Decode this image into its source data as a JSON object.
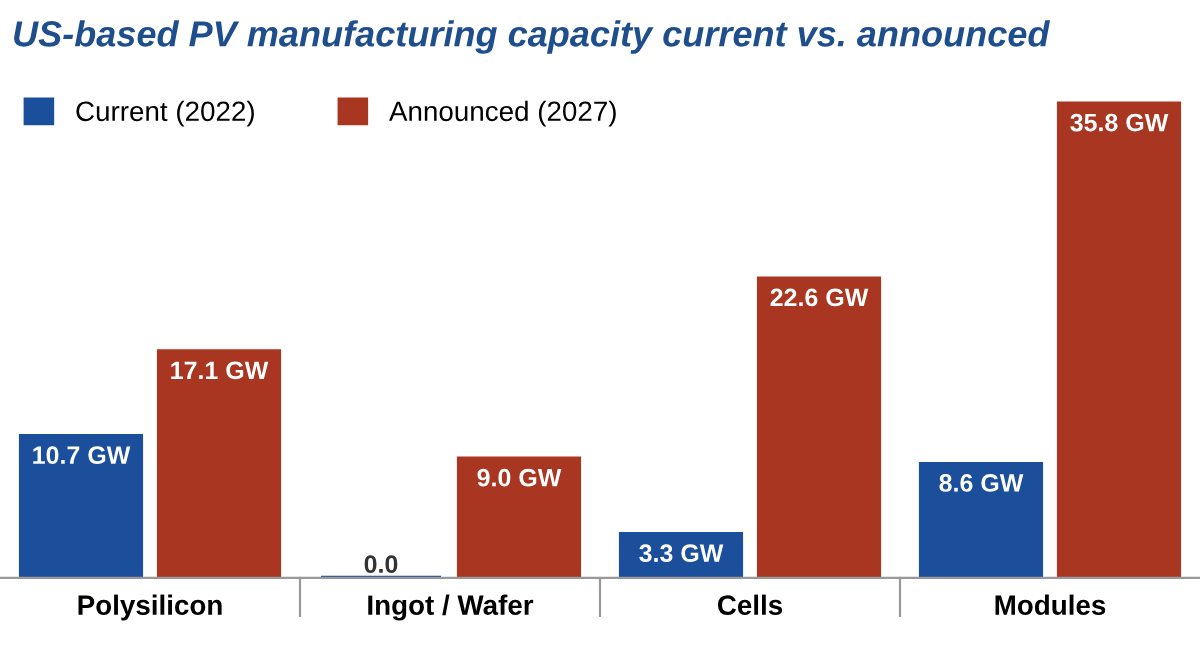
{
  "chart_data": {
    "type": "bar",
    "title": "US-based PV manufacturing capacity current vs. announced",
    "categories": [
      "Polysilicon",
      "Ingot / Wafer",
      "Cells",
      "Modules"
    ],
    "series": [
      {
        "name": "Current (2022)",
        "color": "#1b4f9c",
        "values": [
          10.7,
          0.0,
          3.3,
          8.6
        ],
        "value_labels": [
          "10.7 GW",
          "0.0",
          "3.3 GW",
          "8.6 GW"
        ]
      },
      {
        "name": "Announced (2027)",
        "color": "#a93621",
        "values": [
          17.1,
          9.0,
          22.6,
          35.8
        ],
        "value_labels": [
          "17.1 GW",
          "9.0 GW",
          "22.6 GW",
          "35.8 GW"
        ]
      }
    ],
    "legend": "top left",
    "grid": false
  }
}
